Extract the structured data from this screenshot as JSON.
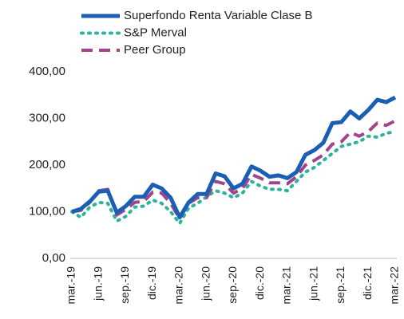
{
  "chart_data": {
    "type": "line",
    "categories": [
      "mar.-19",
      null,
      null,
      "jun.-19",
      null,
      null,
      "sep.-19",
      null,
      null,
      "dic.-19",
      null,
      null,
      "mar.-20",
      null,
      null,
      "jun.-20",
      null,
      null,
      "sep.-20",
      null,
      null,
      "dic.-20",
      null,
      null,
      "mar.-21",
      null,
      null,
      "jun.-21",
      null,
      null,
      "sep.-21",
      null,
      null,
      "dic.-21",
      null,
      null,
      "mar.-22"
    ],
    "series": [
      {
        "name": "Superfondo Renta Variable Clase B",
        "color": "#1a5fb4",
        "style": "solid",
        "values": [
          100,
          106,
          122,
          143,
          145,
          98,
          112,
          132,
          132,
          158,
          150,
          130,
          88,
          120,
          138,
          138,
          182,
          176,
          150,
          160,
          197,
          188,
          175,
          178,
          172,
          185,
          222,
          232,
          248,
          290,
          292,
          315,
          300,
          318,
          340,
          335,
          345
        ]
      },
      {
        "name": "S&P Merval",
        "color": "#2bb39b",
        "style": "dotted",
        "values": [
          100,
          88,
          110,
          120,
          118,
          80,
          90,
          110,
          112,
          125,
          118,
          100,
          75,
          108,
          118,
          132,
          145,
          140,
          130,
          140,
          165,
          155,
          148,
          148,
          145,
          165,
          185,
          195,
          210,
          225,
          240,
          245,
          250,
          262,
          260,
          268,
          272
        ]
      },
      {
        "name": "Peer Group",
        "color": "#a0458c",
        "style": "dashed",
        "values": [
          100,
          103,
          120,
          145,
          148,
          93,
          105,
          120,
          122,
          142,
          140,
          118,
          85,
          118,
          130,
          130,
          165,
          160,
          140,
          150,
          180,
          172,
          162,
          162,
          160,
          175,
          200,
          210,
          222,
          245,
          250,
          270,
          262,
          272,
          290,
          285,
          295
        ]
      }
    ],
    "ylim": [
      0,
      400
    ],
    "yticks": [
      {
        "value": 0,
        "label": "0,00"
      },
      {
        "value": 100,
        "label": "100,00"
      },
      {
        "value": 200,
        "label": "200,00"
      },
      {
        "value": 300,
        "label": "300,00"
      },
      {
        "value": 400,
        "label": "400,00"
      }
    ],
    "legend": "top-left"
  }
}
